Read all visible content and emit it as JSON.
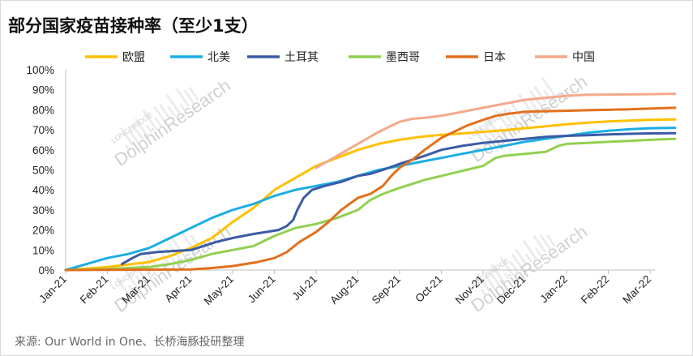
{
  "chart_data": {
    "type": "line",
    "title": "部分国家疫苗接种率（至少1支）",
    "source": "来源: Our World in One、长桥海豚投研整理",
    "watermark": {
      "top": "LONGBRIDGE",
      "main": "DolphinResearch"
    },
    "x_tick_labels": [
      "Jan-21",
      "Feb-21",
      "Mar-21",
      "Apr-21",
      "May-21",
      "Jun-21",
      "Jul-21",
      "Aug-21",
      "Sep-21",
      "Oct-21",
      "Nov-21",
      "Dec-21",
      "Jan-22",
      "Feb-22",
      "Mar-22"
    ],
    "y_tick_labels": [
      "0%",
      "10%",
      "20%",
      "30%",
      "40%",
      "50%",
      "60%",
      "70%",
      "80%",
      "90%",
      "100%"
    ],
    "xlim": [
      0,
      14.65
    ],
    "ylim": [
      0,
      100
    ],
    "grid": false,
    "legend_position": "top",
    "series": [
      {
        "name": "欧盟",
        "color": "#FFC000",
        "points": [
          [
            0,
            0
          ],
          [
            1,
            1.5
          ],
          [
            2,
            4
          ],
          [
            2.5,
            7
          ],
          [
            3,
            11
          ],
          [
            3.5,
            16
          ],
          [
            4,
            24
          ],
          [
            4.5,
            31
          ],
          [
            5,
            40
          ],
          [
            5.5,
            46
          ],
          [
            6,
            52
          ],
          [
            6.5,
            56
          ],
          [
            7,
            60
          ],
          [
            7.5,
            63
          ],
          [
            8,
            65
          ],
          [
            8.5,
            66.5
          ],
          [
            9,
            67.5
          ],
          [
            9.5,
            68.2
          ],
          [
            10,
            69
          ],
          [
            10.5,
            69.8
          ],
          [
            11,
            70.8
          ],
          [
            11.5,
            71.8
          ],
          [
            12,
            72.8
          ],
          [
            12.5,
            73.6
          ],
          [
            13,
            74.2
          ],
          [
            13.5,
            74.6
          ],
          [
            14,
            75
          ],
          [
            14.6,
            75.2
          ]
        ]
      },
      {
        "name": "北美",
        "color": "#1CAEE4",
        "points": [
          [
            0,
            0
          ],
          [
            0.5,
            3
          ],
          [
            1,
            6
          ],
          [
            1.5,
            8
          ],
          [
            2,
            11
          ],
          [
            2.5,
            16
          ],
          [
            3,
            21
          ],
          [
            3.5,
            26
          ],
          [
            4,
            30
          ],
          [
            4.5,
            33
          ],
          [
            5,
            37
          ],
          [
            5.5,
            40
          ],
          [
            6,
            42
          ],
          [
            6.5,
            44
          ],
          [
            7,
            47
          ],
          [
            7.5,
            50
          ],
          [
            8,
            52
          ],
          [
            8.5,
            54
          ],
          [
            9,
            56
          ],
          [
            9.5,
            58
          ],
          [
            10,
            60
          ],
          [
            10.5,
            62
          ],
          [
            11,
            64
          ],
          [
            11.5,
            65.5
          ],
          [
            12,
            67
          ],
          [
            12.5,
            68.5
          ],
          [
            13,
            69.5
          ],
          [
            13.5,
            70.3
          ],
          [
            14,
            70.8
          ],
          [
            14.6,
            71
          ]
        ]
      },
      {
        "name": "土耳其",
        "color": "#3B5BA5",
        "points": [
          [
            1.35,
            3
          ],
          [
            1.6,
            6
          ],
          [
            1.8,
            8
          ],
          [
            2.2,
            9
          ],
          [
            2.6,
            9.5
          ],
          [
            3,
            10
          ],
          [
            3.3,
            12
          ],
          [
            3.6,
            14
          ],
          [
            4,
            16
          ],
          [
            4.5,
            18
          ],
          [
            4.8,
            19
          ],
          [
            5.1,
            20
          ],
          [
            5.3,
            22
          ],
          [
            5.45,
            25
          ],
          [
            5.55,
            30
          ],
          [
            5.7,
            36
          ],
          [
            5.9,
            40
          ],
          [
            6.2,
            42
          ],
          [
            6.6,
            44
          ],
          [
            7,
            47
          ],
          [
            7.3,
            48
          ],
          [
            7.6,
            50
          ],
          [
            8,
            53
          ],
          [
            8.3,
            55
          ],
          [
            8.6,
            57
          ],
          [
            9,
            60
          ],
          [
            9.5,
            62
          ],
          [
            10,
            63.5
          ],
          [
            10.5,
            64.5
          ],
          [
            11,
            65.5
          ],
          [
            11.5,
            66.5
          ],
          [
            12,
            67
          ],
          [
            12.5,
            67.3
          ],
          [
            13,
            67.7
          ],
          [
            13.5,
            68
          ],
          [
            14,
            68.2
          ],
          [
            14.6,
            68.3
          ]
        ]
      },
      {
        "name": "墨西哥",
        "color": "#92D050",
        "points": [
          [
            0,
            0
          ],
          [
            1,
            0.5
          ],
          [
            2,
            1.5
          ],
          [
            2.5,
            3
          ],
          [
            3,
            5
          ],
          [
            3.5,
            8
          ],
          [
            4,
            10
          ],
          [
            4.5,
            12
          ],
          [
            5,
            17
          ],
          [
            5.5,
            21
          ],
          [
            6,
            23
          ],
          [
            6.5,
            26
          ],
          [
            7,
            30
          ],
          [
            7.3,
            35
          ],
          [
            7.6,
            38
          ],
          [
            8,
            41
          ],
          [
            8.3,
            43
          ],
          [
            8.6,
            45
          ],
          [
            9,
            47
          ],
          [
            9.3,
            48.5
          ],
          [
            9.6,
            50
          ],
          [
            10,
            52
          ],
          [
            10.3,
            56
          ],
          [
            10.5,
            57
          ],
          [
            11,
            58
          ],
          [
            11.5,
            59
          ],
          [
            11.8,
            62
          ],
          [
            12,
            63
          ],
          [
            12.5,
            63.5
          ],
          [
            13,
            64
          ],
          [
            13.5,
            64.5
          ],
          [
            14,
            65
          ],
          [
            14.6,
            65.5
          ]
        ]
      },
      {
        "name": "日本",
        "color": "#E2701E",
        "points": [
          [
            0,
            0
          ],
          [
            3,
            0.3
          ],
          [
            3.5,
            1
          ],
          [
            4,
            2
          ],
          [
            4.3,
            3
          ],
          [
            4.6,
            4
          ],
          [
            5,
            6
          ],
          [
            5.3,
            9
          ],
          [
            5.6,
            14
          ],
          [
            6,
            19
          ],
          [
            6.3,
            24
          ],
          [
            6.6,
            30
          ],
          [
            7,
            36
          ],
          [
            7.3,
            38
          ],
          [
            7.6,
            42
          ],
          [
            7.8,
            47
          ],
          [
            8,
            51
          ],
          [
            8.3,
            55
          ],
          [
            8.6,
            60
          ],
          [
            9,
            66
          ],
          [
            9.3,
            69
          ],
          [
            9.6,
            72
          ],
          [
            10,
            75
          ],
          [
            10.3,
            77
          ],
          [
            10.6,
            78
          ],
          [
            11,
            79
          ],
          [
            11.5,
            79.3
          ],
          [
            12,
            79.5
          ],
          [
            12.5,
            79.8
          ],
          [
            13,
            80
          ],
          [
            13.5,
            80.3
          ],
          [
            14,
            80.6
          ],
          [
            14.6,
            81
          ]
        ]
      },
      {
        "name": "中国",
        "color": "#F4A98C",
        "points": [
          [
            6,
            51
          ],
          [
            6.5,
            57
          ],
          [
            7,
            63
          ],
          [
            7.5,
            69
          ],
          [
            8,
            74
          ],
          [
            8.3,
            75.5
          ],
          [
            8.6,
            76
          ],
          [
            9,
            77
          ],
          [
            9.5,
            79
          ],
          [
            10,
            81
          ],
          [
            10.5,
            83
          ],
          [
            11,
            85
          ],
          [
            11.5,
            86
          ],
          [
            12,
            87
          ],
          [
            12.5,
            87.5
          ],
          [
            13,
            87.6
          ],
          [
            13.5,
            87.7
          ],
          [
            14,
            87.8
          ],
          [
            14.6,
            88
          ]
        ]
      }
    ]
  }
}
